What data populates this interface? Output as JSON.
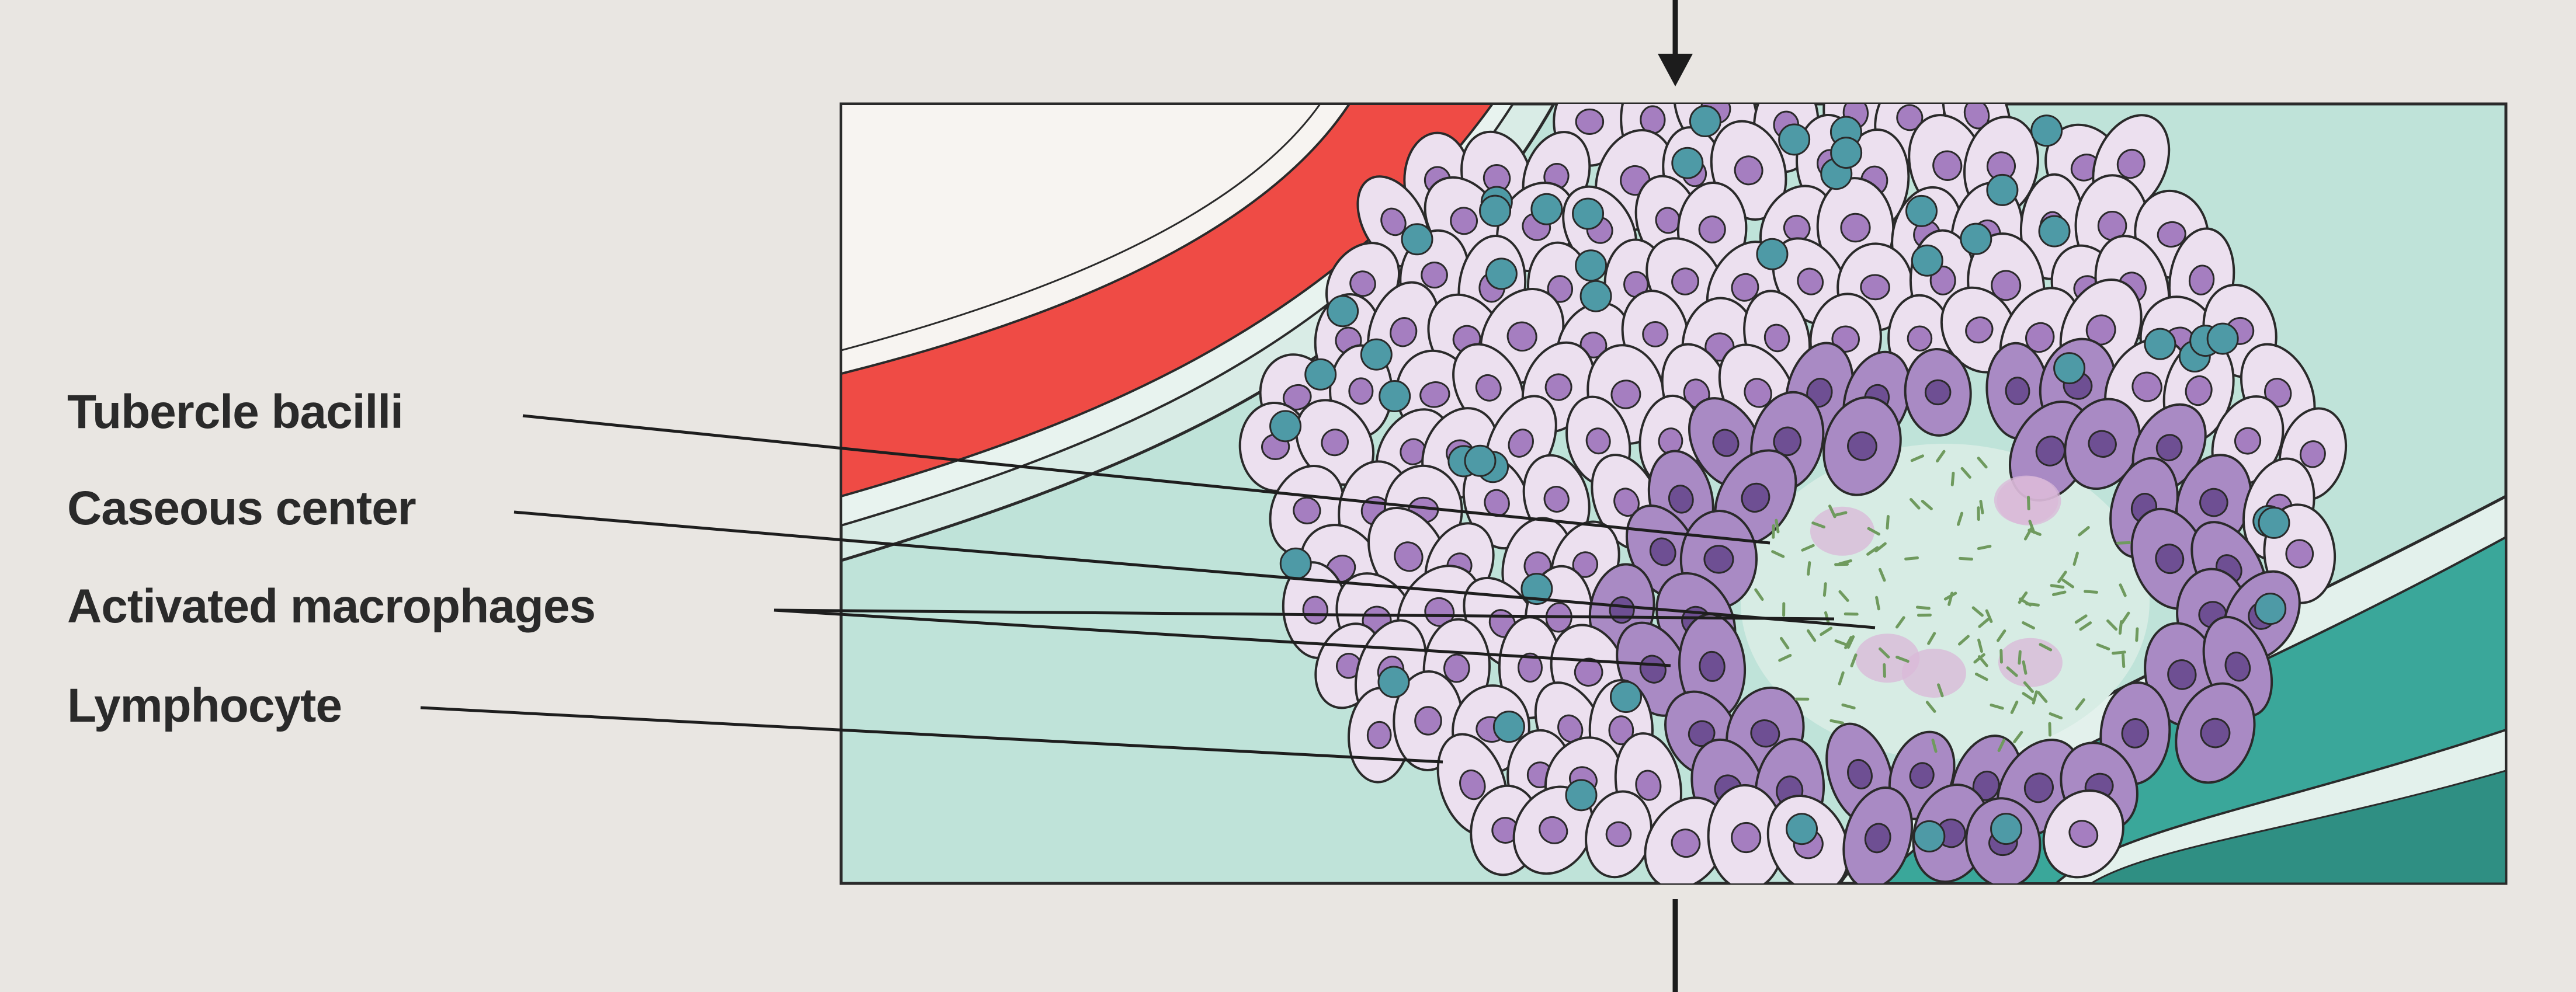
{
  "labels": {
    "tubercle_bacilli": "Tubercle bacilli",
    "caseous_center": "Caseous center",
    "activated_macrophages": "Activated macrophages",
    "lymphocyte": "Lymphocyte"
  },
  "colors": {
    "page_background": "#e9e6e2",
    "tissue_background": "#bfe3d9",
    "vessel_lumen": "#ef4b45",
    "epithelioid_cell": "#ece0ef",
    "activated_macrophage": "#a98ac4",
    "lymphocyte": "#4e9aa6",
    "bacilli": "#6f9a5e",
    "right_vessel": "#3aa79a",
    "outline": "#2a2a2a"
  }
}
